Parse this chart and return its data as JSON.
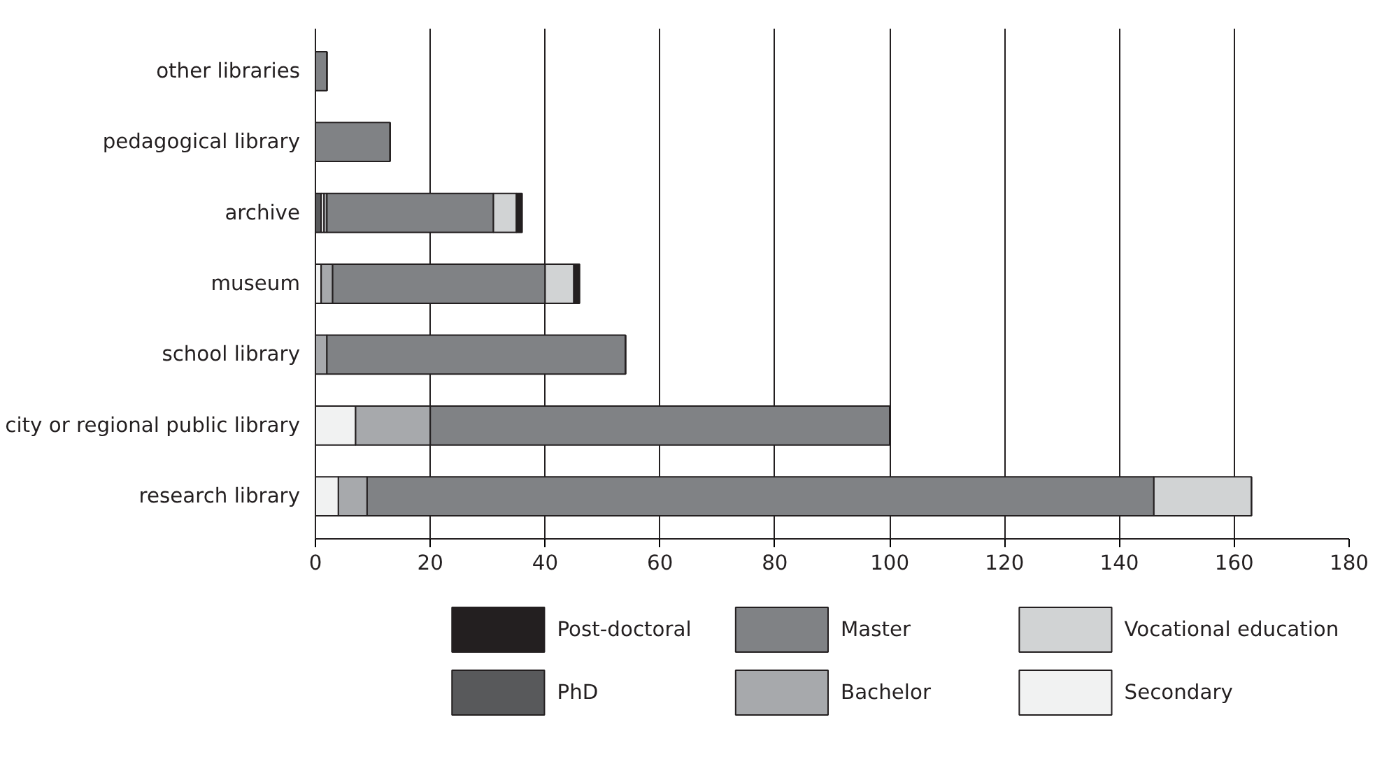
{
  "chart_data": {
    "type": "bar",
    "orientation": "horizontal",
    "stacked": true,
    "categories": [
      "other libraries",
      "pedagogical library",
      "archive",
      "museum",
      "school library",
      "city or regional public library",
      "research library"
    ],
    "series": [
      {
        "name": "PhD",
        "color": "#58595b",
        "values": [
          0,
          0,
          1,
          0,
          0,
          0,
          0
        ]
      },
      {
        "name": "Secondary",
        "color": "#f1f2f2",
        "values": [
          0,
          0,
          0.5,
          1,
          0,
          7,
          4
        ]
      },
      {
        "name": "Bachelor",
        "color": "#a7a9ac",
        "values": [
          0,
          0,
          0.5,
          2,
          2,
          13,
          5
        ]
      },
      {
        "name": "Master",
        "color": "#808285",
        "values": [
          2,
          13,
          29,
          37,
          52,
          80,
          137
        ]
      },
      {
        "name": "Vocational education",
        "color": "#d1d3d4",
        "values": [
          0,
          0,
          4,
          5,
          0,
          0,
          17
        ]
      },
      {
        "name": "Post-doctoral",
        "color": "#231f20",
        "values": [
          0,
          0,
          1,
          1,
          0,
          0,
          0
        ]
      }
    ],
    "xlim": [
      0,
      180
    ],
    "xticks": [
      0,
      20,
      40,
      60,
      80,
      100,
      120,
      140,
      160,
      180
    ],
    "grid": "x",
    "legend": "bottom"
  }
}
